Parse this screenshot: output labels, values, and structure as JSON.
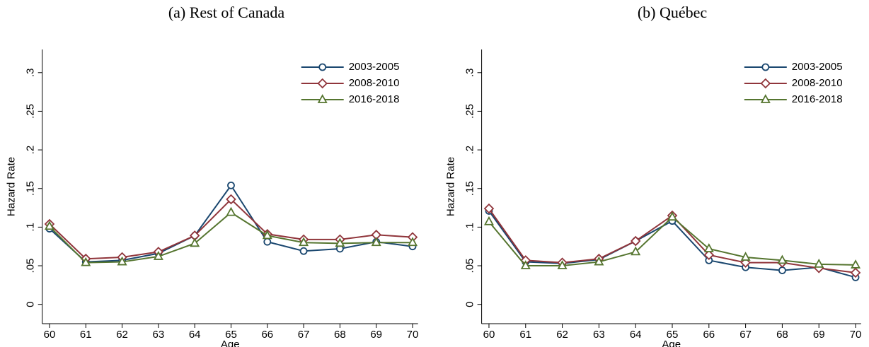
{
  "chart_data": [
    {
      "type": "line",
      "title": "(a) Rest of Canada",
      "xlabel": "Age",
      "ylabel": "Hazard Rate",
      "x": [
        60,
        61,
        62,
        63,
        64,
        65,
        66,
        67,
        68,
        69,
        70
      ],
      "series": [
        {
          "name": "2003-2005",
          "color": "#1a476f",
          "marker": "circle",
          "values": [
            0.098,
            0.055,
            0.057,
            0.066,
            0.089,
            0.154,
            0.081,
            0.069,
            0.072,
            0.081,
            0.075
          ]
        },
        {
          "name": "2008-2010",
          "color": "#90353b",
          "marker": "diamond",
          "values": [
            0.104,
            0.059,
            0.061,
            0.068,
            0.089,
            0.136,
            0.091,
            0.084,
            0.084,
            0.09,
            0.087
          ]
        },
        {
          "name": "2016-2018",
          "color": "#55752f",
          "marker": "triangle",
          "values": [
            0.101,
            0.054,
            0.055,
            0.062,
            0.079,
            0.119,
            0.089,
            0.08,
            0.079,
            0.08,
            0.08
          ]
        }
      ],
      "xlim": [
        59.8,
        70.15
      ],
      "ylim": [
        -0.025,
        0.33
      ],
      "xticks": [
        60,
        61,
        62,
        63,
        64,
        65,
        66,
        67,
        68,
        69,
        70
      ],
      "yticks": [
        0,
        {
          "value": 0.05,
          "label": ".05"
        },
        {
          "value": 0.1,
          "label": ".1"
        },
        {
          "value": 0.15,
          "label": ".15"
        },
        {
          "value": 0.2,
          "label": ".2"
        },
        {
          "value": 0.25,
          "label": ".25"
        },
        {
          "value": 0.3,
          "label": ".3"
        }
      ],
      "legend": "top-right"
    },
    {
      "type": "line",
      "title": "(b) Québec",
      "xlabel": "Age",
      "ylabel": "Hazard Rate",
      "x": [
        60,
        61,
        62,
        63,
        64,
        65,
        66,
        67,
        68,
        69,
        70
      ],
      "series": [
        {
          "name": "2003-2005",
          "color": "#1a476f",
          "marker": "circle",
          "values": [
            0.121,
            0.055,
            0.053,
            0.058,
            0.082,
            0.108,
            0.057,
            0.048,
            0.044,
            0.048,
            0.035
          ]
        },
        {
          "name": "2008-2010",
          "color": "#90353b",
          "marker": "diamond",
          "values": [
            0.124,
            0.057,
            0.054,
            0.059,
            0.082,
            0.115,
            0.064,
            0.054,
            0.054,
            0.047,
            0.041
          ]
        },
        {
          "name": "2016-2018",
          "color": "#55752f",
          "marker": "triangle",
          "values": [
            0.107,
            0.05,
            0.05,
            0.055,
            0.068,
            0.113,
            0.072,
            0.061,
            0.057,
            0.052,
            0.051
          ]
        }
      ],
      "xlim": [
        59.8,
        70.15
      ],
      "ylim": [
        -0.025,
        0.33
      ],
      "xticks": [
        60,
        61,
        62,
        63,
        64,
        65,
        66,
        67,
        68,
        69,
        70
      ],
      "yticks": [
        0,
        {
          "value": 0.05,
          "label": ".05"
        },
        {
          "value": 0.1,
          "label": ".1"
        },
        {
          "value": 0.15,
          "label": ".15"
        },
        {
          "value": 0.2,
          "label": ".2"
        },
        {
          "value": 0.25,
          "label": ".25"
        },
        {
          "value": 0.3,
          "label": ".3"
        }
      ],
      "legend": "top-right"
    }
  ]
}
